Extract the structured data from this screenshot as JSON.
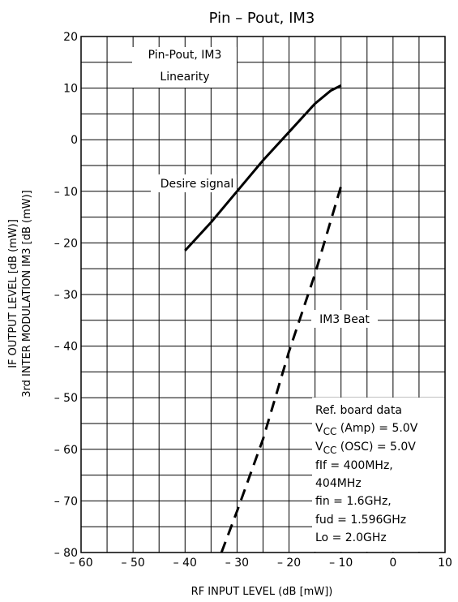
{
  "chart_data": {
    "type": "line",
    "title": "Pin  –  Pout, IM3",
    "xlabel": "RF INPUT LEVEL    (dB [mW])",
    "ylabel_line1": "IF OUTPUT LEVEL    [dB (mW)]",
    "ylabel_line2": "3rd INTER MODULATION IM3    [dB (mW)]",
    "xlim": [
      -60,
      10
    ],
    "ylim": [
      -80,
      20
    ],
    "x_major_step": 10,
    "y_major_step": 10,
    "x_ticks": [
      "– 60",
      "– 50",
      "– 40",
      "– 30",
      "– 20",
      "– 10",
      "0",
      "10"
    ],
    "y_ticks": [
      "20",
      "10",
      "0",
      "– 10",
      "– 20",
      "– 30",
      "– 40",
      "– 50",
      "– 60",
      "– 70",
      "– 80"
    ],
    "grid": true,
    "series": [
      {
        "name": "Desire signal",
        "style": "solid",
        "x": [
          -40,
          -35,
          -30,
          -25,
          -20,
          -15,
          -12,
          -10
        ],
        "y": [
          -21.5,
          -16,
          -10,
          -4,
          1.5,
          7,
          9.5,
          10.5
        ]
      },
      {
        "name": "IM3 Beat",
        "style": "dashed",
        "x": [
          -33,
          -30,
          -25,
          -20,
          -15,
          -10
        ],
        "y": [
          -80,
          -72,
          -58,
          -41,
          -26,
          -9
        ]
      }
    ],
    "annotations": [
      {
        "text": "Pin-Pout, IM3"
      },
      {
        "text": "Linearity"
      },
      {
        "text": "Desire signal"
      },
      {
        "text": "IM3  Beat"
      }
    ],
    "note_lines": [
      "Ref. board data",
      "Vсс (Amp) = 5.0V",
      "Vсс (OSC) = 5.0V",
      "fIf = 400MHz,",
      "404MHz",
      "fin = 1.6GHz,",
      "fud = 1.596GHz",
      "Lo = 2.0GHz"
    ],
    "note_display": [
      "Ref. board data",
      "VCC (Amp) = 5.0V",
      "VCC (OSC) = 5.0V",
      "fIf = 400MHz,",
      "404MHz",
      "fin = 1.6GHz,",
      "fud = 1.596GHz",
      "Lo = 2.0GHz"
    ]
  }
}
